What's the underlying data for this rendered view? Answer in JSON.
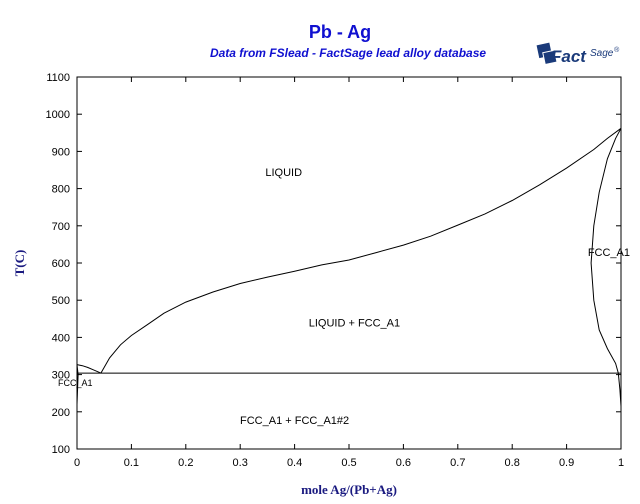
{
  "chart_data": {
    "type": "line",
    "title": "Pb - Ag",
    "subtitle": "Data from FSlead - FactSage lead alloy database",
    "xlabel": "mole Ag/(Pb+Ag)",
    "ylabel": "T(C)",
    "xlim": [
      0,
      1
    ],
    "ylim": [
      100,
      1100
    ],
    "xticks": [
      0,
      0.1,
      0.2,
      0.3,
      0.4,
      0.5,
      0.6,
      0.7,
      0.8,
      0.9,
      1
    ],
    "yticks": [
      100,
      200,
      300,
      400,
      500,
      600,
      700,
      800,
      900,
      1000,
      1100
    ],
    "grid": false,
    "series": [
      {
        "id": "liquidus-ag-side",
        "x": [
          0.044,
          0.06,
          0.08,
          0.1,
          0.13,
          0.16,
          0.2,
          0.25,
          0.3,
          0.35,
          0.4,
          0.45,
          0.5,
          0.55,
          0.6,
          0.65,
          0.7,
          0.75,
          0.8,
          0.85,
          0.9,
          0.95,
          0.975,
          1.0
        ],
        "y": [
          304,
          345,
          380,
          405,
          435,
          465,
          495,
          522,
          545,
          562,
          578,
          595,
          608,
          628,
          648,
          672,
          702,
          732,
          768,
          810,
          855,
          905,
          935,
          962
        ]
      },
      {
        "id": "liquidus-pb-side",
        "x": [
          0.0,
          0.01,
          0.02,
          0.03,
          0.044
        ],
        "y": [
          327,
          324,
          319,
          313,
          304
        ]
      },
      {
        "id": "solidus-ag-side",
        "x": [
          1.0,
          0.99,
          0.975,
          0.96,
          0.95,
          0.945,
          0.95,
          0.96,
          0.975,
          0.99,
          0.995
        ],
        "y": [
          962,
          935,
          880,
          790,
          700,
          600,
          500,
          420,
          370,
          330,
          304
        ]
      },
      {
        "id": "solvus-ag-side",
        "x": [
          0.995,
          0.998,
          1.0
        ],
        "y": [
          304,
          260,
          215
        ]
      },
      {
        "id": "pb-side-solid",
        "x": [
          0.0,
          0.002,
          0.0
        ],
        "y": [
          327,
          300,
          220
        ]
      },
      {
        "id": "eutectic-line",
        "x": [
          0.0,
          1.0
        ],
        "y": [
          304,
          304
        ]
      }
    ],
    "annotations": [
      {
        "text": "LIQUID",
        "x": 0.38,
        "y": 845
      },
      {
        "text": "LIQUID + FCC_A1",
        "x": 0.51,
        "y": 440
      },
      {
        "text": "FCC_A1 + FCC_A1#2",
        "x": 0.4,
        "y": 178
      },
      {
        "text": "FCC_A1",
        "x": 0.985,
        "y": 630
      },
      {
        "text": "FCC_A1",
        "x": 0.0,
        "y": 280
      }
    ]
  },
  "logo": {
    "text": "Fact",
    "suffix": "Sage",
    "mark": "®"
  }
}
